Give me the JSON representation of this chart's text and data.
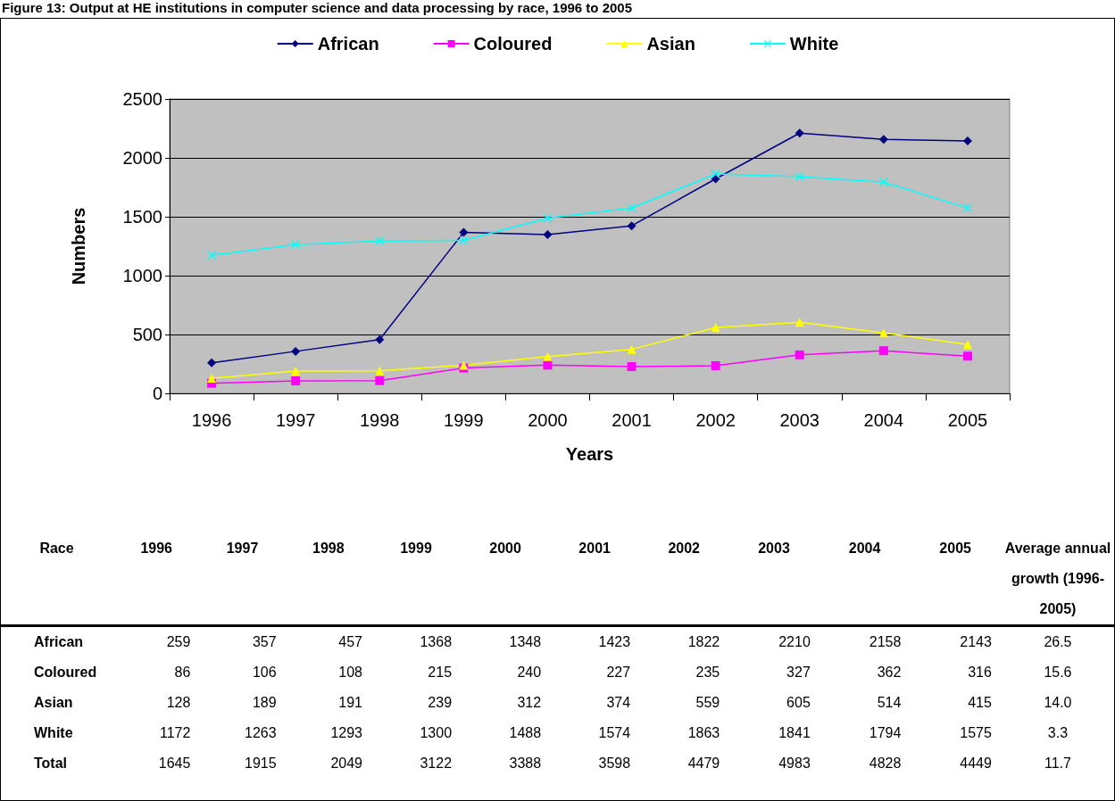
{
  "chart_data": {
    "type": "line",
    "title": "Figure 13: Output at HE institutions in computer science and data processing by race, 1996 to 2005",
    "xlabel": "Years",
    "ylabel": "Numbers",
    "categories": [
      "1996",
      "1997",
      "1998",
      "1999",
      "2000",
      "2001",
      "2002",
      "2003",
      "2004",
      "2005"
    ],
    "series": [
      {
        "name": "African",
        "color": "#000080",
        "marker": "diamond",
        "values": [
          259,
          357,
          457,
          1368,
          1348,
          1423,
          1822,
          2210,
          2158,
          2143
        ]
      },
      {
        "name": "Coloured",
        "color": "#ff00ff",
        "marker": "square",
        "values": [
          86,
          106,
          108,
          215,
          240,
          227,
          235,
          327,
          362,
          316
        ]
      },
      {
        "name": "Asian",
        "color": "#ffff00",
        "marker": "triangle",
        "values": [
          128,
          189,
          191,
          239,
          312,
          374,
          559,
          605,
          514,
          415
        ]
      },
      {
        "name": "White",
        "color": "#00ffff",
        "marker": "cross",
        "values": [
          1172,
          1263,
          1293,
          1300,
          1488,
          1574,
          1863,
          1841,
          1794,
          1575
        ]
      }
    ],
    "ylim": [
      0,
      2500
    ],
    "yticks": [
      0,
      500,
      1000,
      1500,
      2000,
      2500
    ],
    "grid": "y",
    "legend": "top",
    "data_labels": true,
    "totals": [
      "1645",
      "1915",
      "2049",
      "3122",
      "3388",
      "3598",
      "4479",
      "4983",
      "4828",
      "4449"
    ],
    "annotations": [
      "Race",
      "Average annual growth (1996-2005)",
      "26.5",
      "15.6",
      "14.0",
      "3.3",
      "Total",
      "11.7"
    ]
  }
}
